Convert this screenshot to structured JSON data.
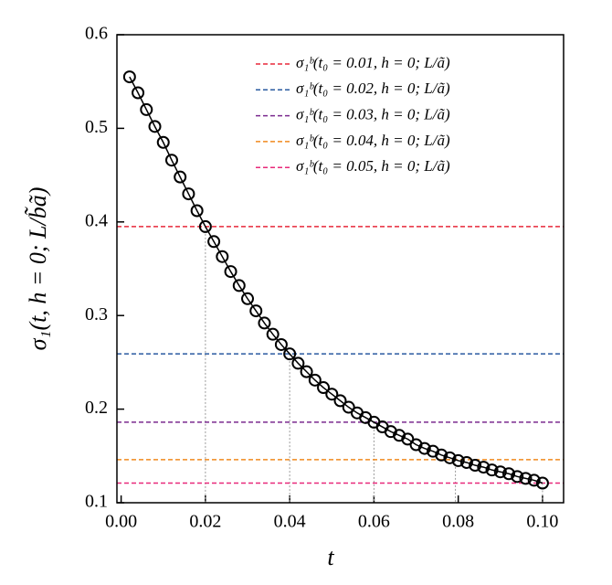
{
  "chart_data": {
    "type": "line",
    "x_label": "t",
    "y_label": "σ₁(t, h = 0; L/b̃ã)",
    "x": [
      0.002,
      0.004,
      0.006,
      0.008,
      0.01,
      0.012,
      0.014,
      0.016,
      0.018,
      0.02,
      0.022,
      0.024,
      0.026,
      0.028,
      0.03,
      0.032,
      0.034,
      0.036,
      0.038,
      0.04,
      0.042,
      0.044,
      0.046,
      0.048,
      0.05,
      0.052,
      0.054,
      0.056,
      0.058,
      0.06,
      0.062,
      0.064,
      0.066,
      0.068,
      0.07,
      0.072,
      0.074,
      0.076,
      0.078,
      0.08,
      0.082,
      0.084,
      0.086,
      0.088,
      0.09,
      0.092,
      0.094,
      0.096,
      0.098,
      0.1
    ],
    "series": [
      {
        "color": "#000000",
        "values": [
          0.555,
          0.538,
          0.52,
          0.502,
          0.485,
          0.466,
          0.448,
          0.43,
          0.412,
          0.395,
          0.379,
          0.363,
          0.347,
          0.332,
          0.318,
          0.305,
          0.292,
          0.28,
          0.269,
          0.259,
          0.249,
          0.24,
          0.231,
          0.223,
          0.216,
          0.209,
          0.202,
          0.196,
          0.191,
          0.186,
          0.181,
          0.176,
          0.172,
          0.168,
          0.162,
          0.158,
          0.155,
          0.151,
          0.148,
          0.145,
          0.143,
          0.14,
          0.138,
          0.135,
          0.133,
          0.131,
          0.128,
          0.126,
          0.124,
          0.121
        ]
      }
    ],
    "reference_lines": [
      {
        "name": "σ₁ᵇ(t₀ = 0.01, h = 0; L/ã)",
        "color": "#e8293a",
        "value": 0.395
      },
      {
        "name": "σ₁ᵇ(t₀ = 0.02, h = 0; L/ã)",
        "color": "#2a5aa0",
        "value": 0.259
      },
      {
        "name": "σ₁ᵇ(t₀ = 0.03, h = 0; L/ã)",
        "color": "#7b2a8f",
        "value": 0.186
      },
      {
        "name": "σ₁ᵇ(t₀ = 0.04, h = 0; L/ã)",
        "color": "#f08a1e",
        "value": 0.146
      },
      {
        "name": "σ₁ᵇ(t₀ = 0.05, h = 0; L/ã)",
        "color": "#e8297a",
        "value": 0.121
      }
    ],
    "xlim": [
      -0.001,
      0.105
    ],
    "ylim": [
      0.1,
      0.6
    ],
    "xticks": [
      {
        "value": 0,
        "label": "0.00"
      },
      0.02,
      0.04,
      0.06,
      0.08,
      {
        "value": 0.1,
        "label": "0.10"
      }
    ],
    "yticks": [
      0.1,
      0.2,
      0.3,
      0.4,
      0.5,
      0.6
    ],
    "legend": "upper right"
  }
}
